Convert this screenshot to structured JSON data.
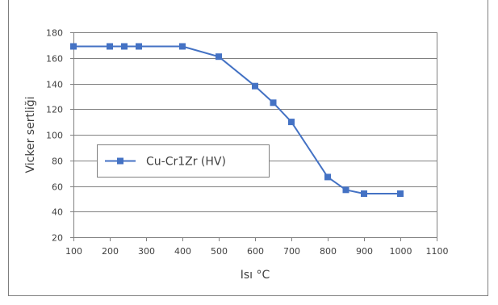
{
  "chart_data": {
    "type": "line",
    "xlabel": "Isı °C",
    "ylabel": "Vicker sertliği",
    "xlim": [
      100,
      1100
    ],
    "ylim": [
      20,
      180
    ],
    "xticks": [
      100,
      200,
      300,
      400,
      500,
      600,
      700,
      800,
      900,
      1000,
      1100
    ],
    "yticks": [
      20,
      40,
      60,
      80,
      100,
      120,
      140,
      160,
      180
    ],
    "grid": "horizontal",
    "legend": "left-center",
    "series": [
      {
        "name": "Cu-Cr1Zr (HV)",
        "color": "#4472c4",
        "x": [
          100,
          200,
          240,
          280,
          400,
          500,
          600,
          650,
          700,
          800,
          850,
          900,
          1000
        ],
        "y": [
          169,
          169,
          169,
          169,
          169,
          161,
          138,
          125,
          110,
          67,
          57,
          54,
          54
        ]
      }
    ]
  }
}
